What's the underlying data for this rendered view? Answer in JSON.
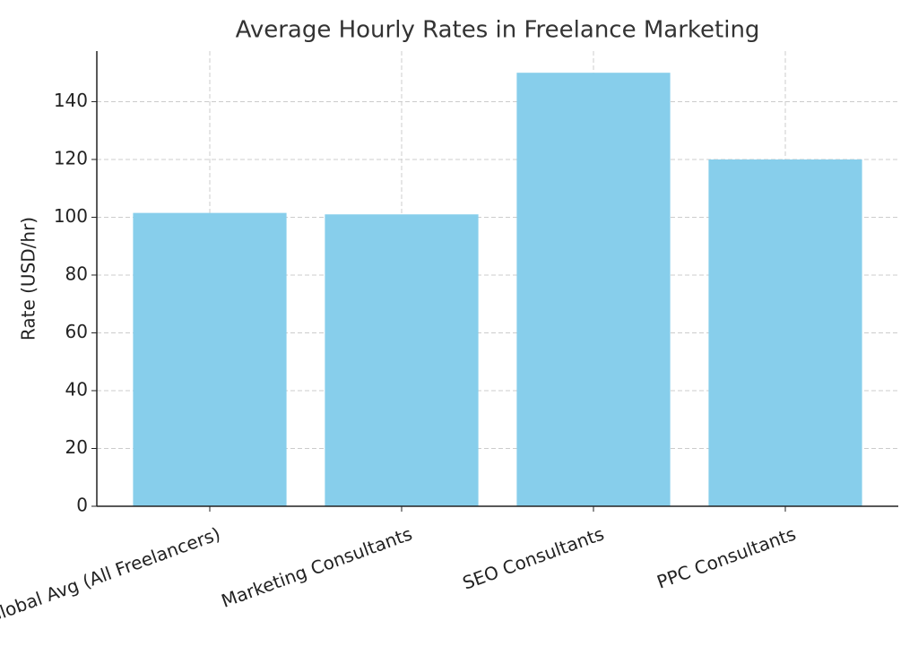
{
  "chart_data": {
    "type": "bar",
    "title": "Average Hourly Rates in Freelance Marketing",
    "ylabel": "Rate (USD/hr)",
    "categories": [
      "Global Avg (All Freelancers)",
      "Marketing Consultants",
      "SEO Consultants",
      "PPC Consultants"
    ],
    "values": [
      101.5,
      101,
      150,
      120
    ],
    "color": "#87ceeb",
    "ylim": [
      0,
      157.5
    ],
    "yticks": [
      0,
      20,
      40,
      60,
      80,
      100,
      120,
      140
    ],
    "grid": true
  }
}
